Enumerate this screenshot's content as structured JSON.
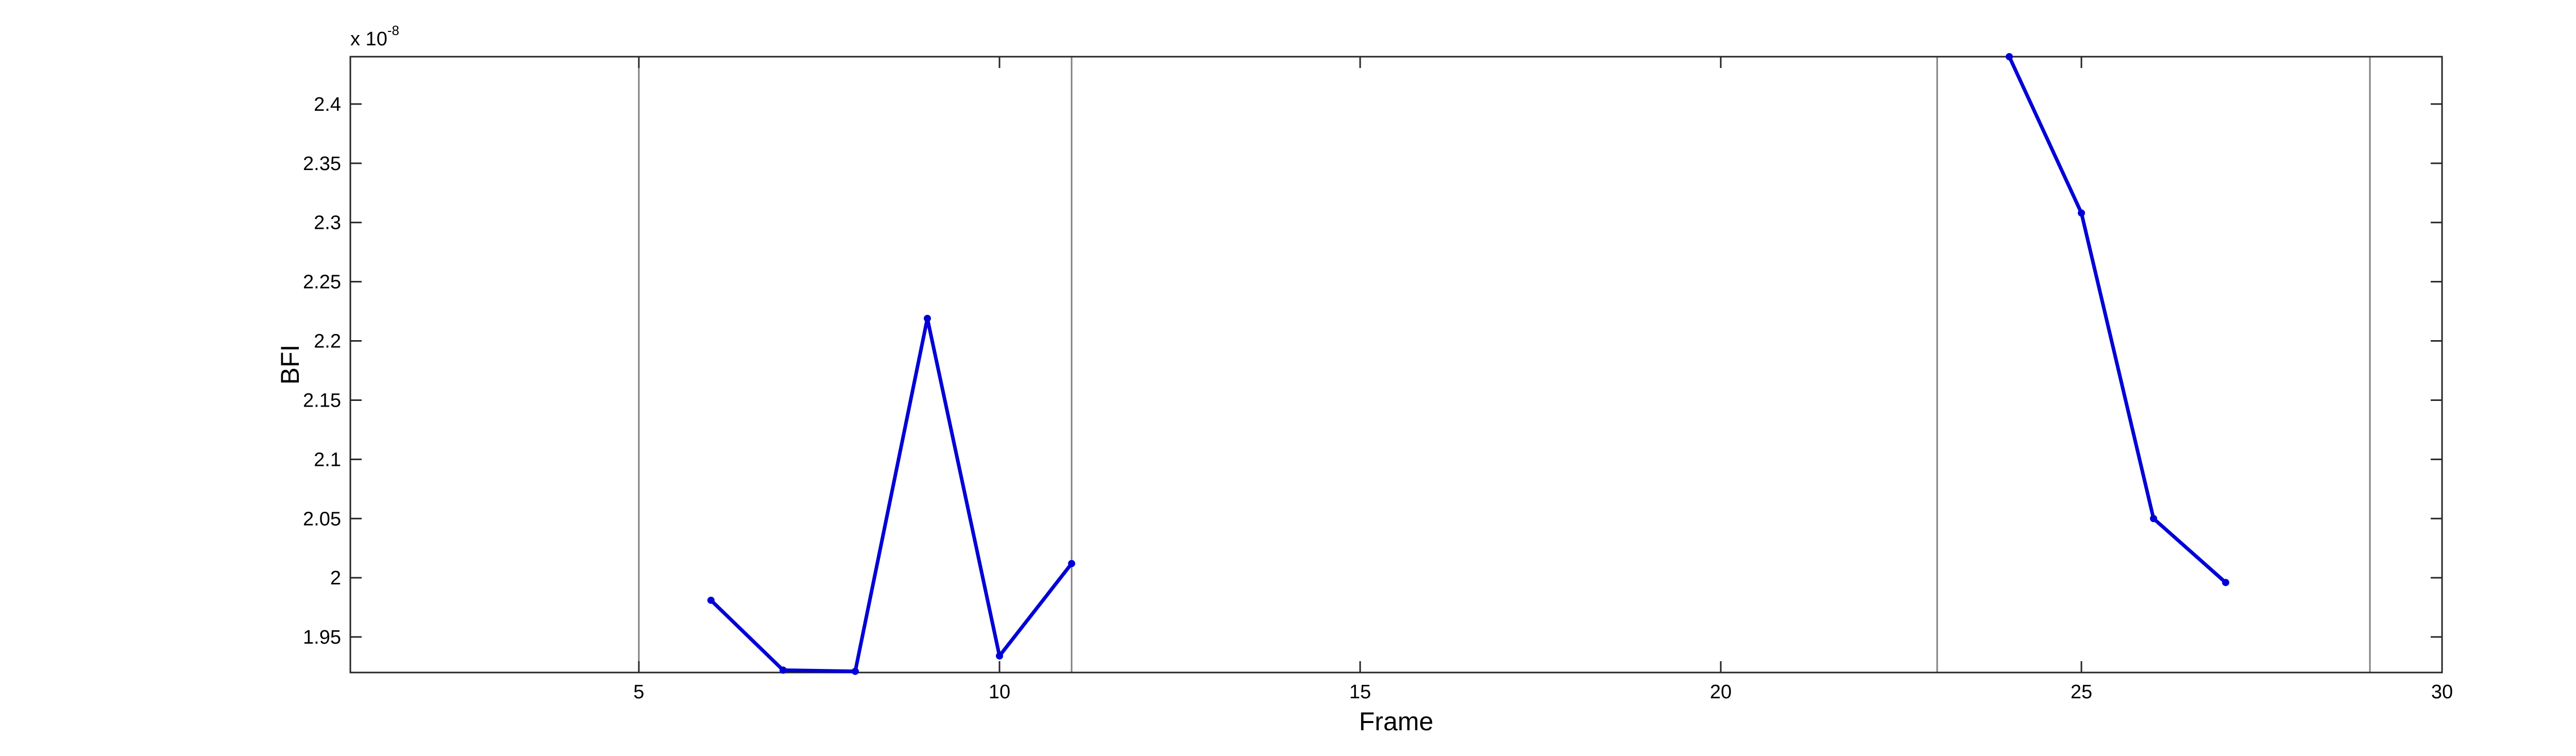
{
  "chart_data": {
    "type": "line",
    "xlabel": "Frame",
    "ylabel": "BFI",
    "y_exponent_base": "x 10",
    "y_exponent_power": "-8",
    "xlim": [
      1,
      30
    ],
    "ylim": [
      1.92,
      2.44
    ],
    "xticks": [
      5,
      10,
      15,
      20,
      25,
      30
    ],
    "yticks": [
      1.95,
      2.0,
      2.05,
      2.1,
      2.15,
      2.2,
      2.25,
      2.3,
      2.35,
      2.4
    ],
    "xtick_labels": [
      "5",
      "10",
      "15",
      "20",
      "25",
      "30"
    ],
    "ytick_labels": [
      "1.95",
      "2",
      "2.05",
      "2.1",
      "2.15",
      "2.2",
      "2.25",
      "2.3",
      "2.35",
      "2.4"
    ],
    "vertical_lines_x": [
      5,
      11,
      23,
      29
    ],
    "series": [
      {
        "color": "#0000d6",
        "segments": [
          {
            "x": [
              6,
              7,
              8,
              9,
              10,
              11
            ],
            "y": [
              1.981,
              1.922,
              1.921,
              2.219,
              1.934,
              2.012
            ]
          },
          {
            "x": [
              24,
              25,
              26,
              27
            ],
            "y": [
              2.44,
              2.308,
              2.05,
              1.996
            ]
          }
        ]
      }
    ],
    "grid": false,
    "legend": "none"
  }
}
